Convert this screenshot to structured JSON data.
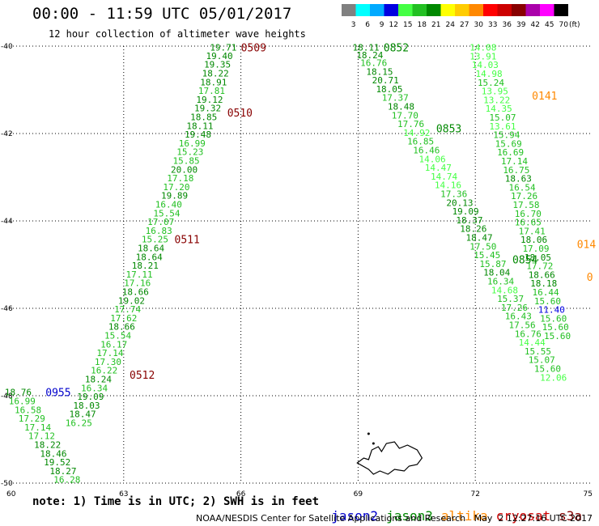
{
  "header": {
    "title": "00:00 - 11:59 UTC 05/01/2017",
    "subtitle": "12 hour collection of altimeter wave heights"
  },
  "legend": {
    "unit": "(ft)",
    "bins": [
      {
        "label": "3",
        "color": "#808080"
      },
      {
        "label": "6",
        "color": "#00ffff"
      },
      {
        "label": "9",
        "color": "#00aaff"
      },
      {
        "label": "12",
        "color": "#0000e0"
      },
      {
        "label": "15",
        "color": "#44ff44"
      },
      {
        "label": "18",
        "color": "#22c022"
      },
      {
        "label": "21",
        "color": "#008800"
      },
      {
        "label": "24",
        "color": "#ffff00"
      },
      {
        "label": "27",
        "color": "#ffcc00"
      },
      {
        "label": "30",
        "color": "#ff8800"
      },
      {
        "label": "33",
        "color": "#ff0000"
      },
      {
        "label": "36",
        "color": "#cc0000"
      },
      {
        "label": "39",
        "color": "#880000"
      },
      {
        "label": "42",
        "color": "#aa00aa"
      },
      {
        "label": "45",
        "color": "#ff00ff"
      },
      {
        "label": "70",
        "color": "#000000"
      }
    ]
  },
  "footer": {
    "note": "note: 1) Time is in UTC; 2) SWH is in feet",
    "satellites": [
      {
        "name": "jason2",
        "color": "#0000cc"
      },
      {
        "name": "jason3",
        "color": "#008800"
      },
      {
        "name": "altika",
        "color": "#ff8800"
      },
      {
        "name": "cryosat",
        "color": "#cc0000"
      },
      {
        "name": "s3a",
        "color": "#880000"
      }
    ],
    "credit": "NOAA/NESDIS Center for Satellite Applications and Research   May  2 12:27:16 UTC 2017"
  },
  "chart_data": {
    "type": "scatter",
    "xlim": [
      60,
      75
    ],
    "ylim": [
      -50,
      -40
    ],
    "x_ticks": [
      "60",
      "63",
      "66",
      "69",
      "72",
      "75"
    ],
    "y_ticks": [
      "-40",
      "-42",
      "-44",
      "-46",
      "-48",
      "-50"
    ],
    "grid": true,
    "colors": {
      "t21": "#008800",
      "t18": "#22c022",
      "t15": "#44ff44",
      "t12": "#0000e0",
      "cryosat": "#cc0000",
      "s3a": "#880000",
      "jason2": "#0000cc",
      "jason3": "#008800",
      "altika": "#ff8800"
    },
    "tracks": [
      {
        "name": "track-west",
        "points": [
          {
            "x": 65.55,
            "y": -40.03,
            "v": "19.71"
          },
          {
            "x": 65.45,
            "y": -40.22,
            "v": "19.40"
          },
          {
            "x": 65.4,
            "y": -40.42,
            "v": "19.35"
          },
          {
            "x": 65.35,
            "y": -40.62,
            "v": "18.22"
          },
          {
            "x": 65.3,
            "y": -40.82,
            "v": "18.91"
          },
          {
            "x": 65.25,
            "y": -41.02,
            "v": "17.81"
          },
          {
            "x": 65.2,
            "y": -41.22,
            "v": "19.12"
          },
          {
            "x": 65.15,
            "y": -41.42,
            "v": "19.32"
          },
          {
            "x": 65.05,
            "y": -41.62,
            "v": "18.85"
          },
          {
            "x": 64.95,
            "y": -41.82,
            "v": "18.11"
          },
          {
            "x": 64.9,
            "y": -42.02,
            "v": "19.48"
          },
          {
            "x": 64.75,
            "y": -42.22,
            "v": "16.99"
          },
          {
            "x": 64.7,
            "y": -42.42,
            "v": "15.23"
          },
          {
            "x": 64.6,
            "y": -42.62,
            "v": "15.85"
          },
          {
            "x": 64.55,
            "y": -42.82,
            "v": "20.00"
          },
          {
            "x": 64.45,
            "y": -43.02,
            "v": "17.18"
          },
          {
            "x": 64.35,
            "y": -43.22,
            "v": "17.20"
          },
          {
            "x": 64.3,
            "y": -43.42,
            "v": "19.89"
          },
          {
            "x": 64.15,
            "y": -43.62,
            "v": "16.40"
          },
          {
            "x": 64.1,
            "y": -43.82,
            "v": "15.54"
          },
          {
            "x": 63.95,
            "y": -44.02,
            "v": "17.07"
          },
          {
            "x": 63.9,
            "y": -44.22,
            "v": "16.83"
          },
          {
            "x": 63.8,
            "y": -44.42,
            "v": "15.25"
          },
          {
            "x": 63.7,
            "y": -44.62,
            "v": "18.64"
          },
          {
            "x": 63.65,
            "y": -44.82,
            "v": "18.64"
          },
          {
            "x": 63.55,
            "y": -45.02,
            "v": "18.21"
          },
          {
            "x": 63.4,
            "y": -45.22,
            "v": "17.11"
          },
          {
            "x": 63.35,
            "y": -45.42,
            "v": "17.16"
          },
          {
            "x": 63.3,
            "y": -45.62,
            "v": "18.66"
          },
          {
            "x": 63.2,
            "y": -45.82,
            "v": "19.02"
          },
          {
            "x": 63.1,
            "y": -46.02,
            "v": "17.74"
          },
          {
            "x": 63.0,
            "y": -46.22,
            "v": "17.62"
          },
          {
            "x": 62.95,
            "y": -46.42,
            "v": "18.66"
          },
          {
            "x": 62.85,
            "y": -46.62,
            "v": "15.54"
          },
          {
            "x": 62.75,
            "y": -46.82,
            "v": "16.17"
          },
          {
            "x": 62.65,
            "y": -47.02,
            "v": "17.14"
          },
          {
            "x": 62.6,
            "y": -47.22,
            "v": "17.30"
          },
          {
            "x": 62.5,
            "y": -47.42,
            "v": "16.22"
          },
          {
            "x": 62.35,
            "y": -47.62,
            "v": "18.24"
          },
          {
            "x": 62.25,
            "y": -47.82,
            "v": "16.34"
          },
          {
            "x": 62.15,
            "y": -48.02,
            "v": "19.09"
          },
          {
            "x": 62.05,
            "y": -48.22,
            "v": "18.03"
          },
          {
            "x": 61.95,
            "y": -48.42,
            "v": "18.47"
          },
          {
            "x": 61.85,
            "y": -48.62,
            "v": "16.25"
          }
        ]
      },
      {
        "name": "track-southwest",
        "points": [
          {
            "x": 60.3,
            "y": -47.92,
            "v": "18.76"
          },
          {
            "x": 60.4,
            "y": -48.12,
            "v": "16.99"
          },
          {
            "x": 60.55,
            "y": -48.32,
            "v": "16.58"
          },
          {
            "x": 60.65,
            "y": -48.52,
            "v": "17.29"
          },
          {
            "x": 60.8,
            "y": -48.72,
            "v": "17.14"
          },
          {
            "x": 60.9,
            "y": -48.92,
            "v": "17.12"
          },
          {
            "x": 61.05,
            "y": -49.12,
            "v": "18.22"
          },
          {
            "x": 61.2,
            "y": -49.32,
            "v": "18.46"
          },
          {
            "x": 61.3,
            "y": -49.52,
            "v": "19.52"
          },
          {
            "x": 61.45,
            "y": -49.72,
            "v": "18.27"
          },
          {
            "x": 61.55,
            "y": -49.92,
            "v": "16.28"
          }
        ]
      },
      {
        "name": "track-middle",
        "points": [
          {
            "x": 69.2,
            "y": -40.03,
            "v": "18.11"
          },
          {
            "x": 69.3,
            "y": -40.2,
            "v": "18.24"
          },
          {
            "x": 69.4,
            "y": -40.38,
            "v": "16.76"
          },
          {
            "x": 69.55,
            "y": -40.58,
            "v": "18.15"
          },
          {
            "x": 69.7,
            "y": -40.78,
            "v": "20.71"
          },
          {
            "x": 69.8,
            "y": -40.98,
            "v": "18.05"
          },
          {
            "x": 69.95,
            "y": -41.18,
            "v": "17.37"
          },
          {
            "x": 70.1,
            "y": -41.38,
            "v": "18.48"
          },
          {
            "x": 70.2,
            "y": -41.58,
            "v": "17.70"
          },
          {
            "x": 70.35,
            "y": -41.78,
            "v": "17.76"
          },
          {
            "x": 70.5,
            "y": -41.98,
            "v": "14.92"
          },
          {
            "x": 70.6,
            "y": -42.18,
            "v": "16.85"
          },
          {
            "x": 70.75,
            "y": -42.38,
            "v": "16.46"
          },
          {
            "x": 70.9,
            "y": -42.58,
            "v": "14.06"
          },
          {
            "x": 71.05,
            "y": -42.78,
            "v": "14.47"
          },
          {
            "x": 71.2,
            "y": -42.98,
            "v": "14.74"
          },
          {
            "x": 71.3,
            "y": -43.18,
            "v": "14.16"
          },
          {
            "x": 71.45,
            "y": -43.38,
            "v": "17.36"
          },
          {
            "x": 71.6,
            "y": -43.58,
            "v": "20.13"
          },
          {
            "x": 71.75,
            "y": -43.78,
            "v": "19.09"
          },
          {
            "x": 71.85,
            "y": -43.98,
            "v": "18.37"
          },
          {
            "x": 71.95,
            "y": -44.18,
            "v": "18.26"
          },
          {
            "x": 72.1,
            "y": -44.38,
            "v": "18.47"
          },
          {
            "x": 72.2,
            "y": -44.58,
            "v": "17.50"
          },
          {
            "x": 72.3,
            "y": -44.78,
            "v": "15.45"
          },
          {
            "x": 72.45,
            "y": -44.98,
            "v": "15.87"
          },
          {
            "x": 72.55,
            "y": -45.18,
            "v": "18.04"
          },
          {
            "x": 72.65,
            "y": -45.38,
            "v": "16.34"
          },
          {
            "x": 72.75,
            "y": -45.58,
            "v": "14.68"
          },
          {
            "x": 72.9,
            "y": -45.78,
            "v": "15.37"
          },
          {
            "x": 73.0,
            "y": -45.98,
            "v": "17.26"
          },
          {
            "x": 73.1,
            "y": -46.18,
            "v": "16.43"
          },
          {
            "x": 73.2,
            "y": -46.38,
            "v": "17.56"
          },
          {
            "x": 73.35,
            "y": -46.58,
            "v": "16.76"
          },
          {
            "x": 73.45,
            "y": -46.78,
            "v": "14.44"
          },
          {
            "x": 73.6,
            "y": -46.98,
            "v": "15.55"
          },
          {
            "x": 73.7,
            "y": -47.18,
            "v": "15.07"
          },
          {
            "x": 73.85,
            "y": -47.38,
            "v": "15.60"
          },
          {
            "x": 74.0,
            "y": -47.58,
            "v": "12.06"
          }
        ]
      },
      {
        "name": "track-east",
        "points": [
          {
            "x": 72.2,
            "y": -40.03,
            "v": "14.08"
          },
          {
            "x": 72.2,
            "y": -40.23,
            "v": "13.91"
          },
          {
            "x": 72.25,
            "y": -40.43,
            "v": "14.03"
          },
          {
            "x": 72.35,
            "y": -40.63,
            "v": "14.98"
          },
          {
            "x": 72.4,
            "y": -40.83,
            "v": "15.24"
          },
          {
            "x": 72.5,
            "y": -41.03,
            "v": "13.95"
          },
          {
            "x": 72.55,
            "y": -41.23,
            "v": "13.22"
          },
          {
            "x": 72.6,
            "y": -41.43,
            "v": "14.35"
          },
          {
            "x": 72.7,
            "y": -41.63,
            "v": "15.07"
          },
          {
            "x": 72.7,
            "y": -41.83,
            "v": "13.61"
          },
          {
            "x": 72.8,
            "y": -42.03,
            "v": "15.94"
          },
          {
            "x": 72.85,
            "y": -42.23,
            "v": "15.69"
          },
          {
            "x": 72.9,
            "y": -42.43,
            "v": "16.69"
          },
          {
            "x": 73.0,
            "y": -42.63,
            "v": "17.14"
          },
          {
            "x": 73.05,
            "y": -42.83,
            "v": "16.75"
          },
          {
            "x": 73.1,
            "y": -43.03,
            "v": "18.63"
          },
          {
            "x": 73.2,
            "y": -43.23,
            "v": "16.54"
          },
          {
            "x": 73.25,
            "y": -43.43,
            "v": "17.26"
          },
          {
            "x": 73.3,
            "y": -43.63,
            "v": "17.58"
          },
          {
            "x": 73.35,
            "y": -43.83,
            "v": "16.70"
          },
          {
            "x": 73.35,
            "y": -44.03,
            "v": "16.65"
          },
          {
            "x": 73.45,
            "y": -44.23,
            "v": "17.41"
          },
          {
            "x": 73.5,
            "y": -44.43,
            "v": "18.06"
          },
          {
            "x": 73.55,
            "y": -44.63,
            "v": "17.09"
          },
          {
            "x": 73.6,
            "y": -44.83,
            "v": "18.05"
          },
          {
            "x": 73.65,
            "y": -45.03,
            "v": "17.72"
          },
          {
            "x": 73.7,
            "y": -45.23,
            "v": "18.66"
          },
          {
            "x": 73.75,
            "y": -45.43,
            "v": "18.18"
          },
          {
            "x": 73.8,
            "y": -45.63,
            "v": "16.44"
          },
          {
            "x": 73.85,
            "y": -45.83,
            "v": "15.60"
          },
          {
            "x": 73.95,
            "y": -46.03,
            "v": "11.40"
          },
          {
            "x": 74.0,
            "y": -46.23,
            "v": "15.60"
          },
          {
            "x": 74.05,
            "y": -46.43,
            "v": "15.60"
          },
          {
            "x": 74.1,
            "y": -46.63,
            "v": "15.60"
          }
        ]
      }
    ],
    "time_labels": [
      {
        "x": 66.0,
        "y": -40.03,
        "label": "0509",
        "sat": "s3a"
      },
      {
        "x": 65.65,
        "y": -41.52,
        "label": "0510",
        "sat": "s3a"
      },
      {
        "x": 64.3,
        "y": -44.42,
        "label": "0511",
        "sat": "s3a"
      },
      {
        "x": 63.15,
        "y": -47.52,
        "label": "0512",
        "sat": "s3a"
      },
      {
        "x": 61.0,
        "y": -47.92,
        "label": "0955",
        "sat": "jason2"
      },
      {
        "x": 69.65,
        "y": -40.03,
        "label": "0852",
        "sat": "jason3"
      },
      {
        "x": 71.0,
        "y": -41.88,
        "label": "0853",
        "sat": "jason3"
      },
      {
        "x": 72.95,
        "y": -44.88,
        "label": "0854",
        "sat": "jason3"
      },
      {
        "x": 73.45,
        "y": -41.13,
        "label": "0141",
        "sat": "altika"
      },
      {
        "x": 74.6,
        "y": -44.53,
        "label": "014",
        "sat": "altika"
      },
      {
        "x": 74.85,
        "y": -45.28,
        "label": "0",
        "sat": "altika"
      }
    ]
  }
}
